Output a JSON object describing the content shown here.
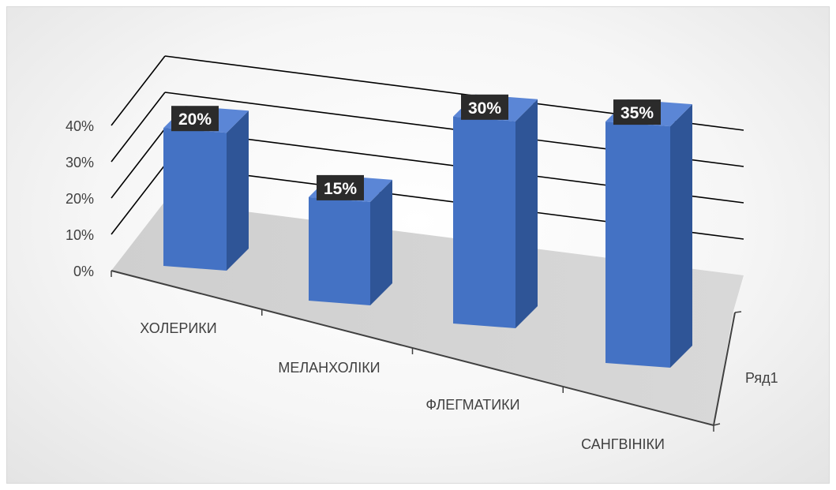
{
  "chart_data": {
    "type": "bar",
    "subtype": "3d-column",
    "categories": [
      "ХОЛЕРИКИ",
      "МЕЛАНХОЛІКИ",
      "ФЛЕГМАТИКИ",
      "САНГВІНІКИ"
    ],
    "series": [
      {
        "name": "Ряд1",
        "values": [
          20,
          15,
          30,
          35
        ]
      }
    ],
    "data_labels": [
      "20%",
      "15%",
      "30%",
      "35%"
    ],
    "y_ticks": [
      "0%",
      "10%",
      "20%",
      "30%",
      "40%"
    ],
    "ylim": [
      0,
      40
    ],
    "grid": true,
    "colors": {
      "bar_front": "#4472c4",
      "bar_side": "#2f5597",
      "bar_top": "#5b86d6",
      "label_bg": "#2b2b2b",
      "grid": "#000000",
      "floor": "#d0d0d0"
    }
  }
}
